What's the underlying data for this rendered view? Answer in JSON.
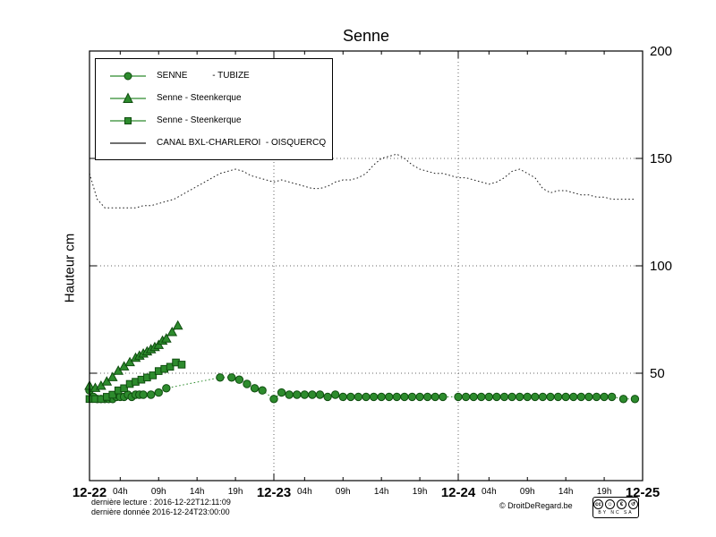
{
  "title": "Senne",
  "ylabel": "Hauteur cm",
  "legend": {
    "items": [
      {
        "label": "SENNE          - TUBIZE",
        "marker": "circle"
      },
      {
        "label": "Senne - Steenkerque",
        "marker": "triangle"
      },
      {
        "label": "Senne - Steenkerque",
        "marker": "square"
      },
      {
        "label": "CANAL BXL-CHARLEROI  - OISQUERCQ",
        "marker": "line"
      }
    ]
  },
  "footer": {
    "line1": "dernière lecture : 2016-12-22T12:11:09",
    "line2": "dernière donnée  2016-12-24T23:00:00",
    "copyright": "© DroitDeRegard.be",
    "license": {
      "cc": "cc",
      "by": "☺",
      "nc": "€",
      "sa": "↺",
      "labels": "BY NC SA"
    }
  },
  "colors": {
    "series_green": "#2d8b2d",
    "series_green_edge": "#0f4d0f",
    "canal_black": "#1a1a1a"
  },
  "chart_data": {
    "type": "line",
    "title": "Senne",
    "ylabel": "Hauteur cm",
    "xlim": [
      0,
      72
    ],
    "ylim": [
      0,
      200
    ],
    "yticks": [
      50,
      100,
      150,
      200
    ],
    "grid": {
      "h": [
        50,
        100,
        150
      ],
      "v": [
        24,
        48
      ]
    },
    "x_major": [
      {
        "pos": 0,
        "label": "12-22"
      },
      {
        "pos": 24,
        "label": "12-23"
      },
      {
        "pos": 48,
        "label": "12-24"
      },
      {
        "pos": 72,
        "label": "12-25"
      }
    ],
    "x_minor": [
      {
        "pos": 4,
        "label": "04h"
      },
      {
        "pos": 9,
        "label": "09h"
      },
      {
        "pos": 14,
        "label": "14h"
      },
      {
        "pos": 19,
        "label": "19h"
      },
      {
        "pos": 28,
        "label": "04h"
      },
      {
        "pos": 33,
        "label": "09h"
      },
      {
        "pos": 38,
        "label": "14h"
      },
      {
        "pos": 43,
        "label": "19h"
      },
      {
        "pos": 52,
        "label": "04h"
      },
      {
        "pos": 57,
        "label": "09h"
      },
      {
        "pos": 62,
        "label": "14h"
      },
      {
        "pos": 67,
        "label": "19h"
      }
    ],
    "series": [
      {
        "name": "SENNE - TUBIZE",
        "marker": "circle",
        "color": "#2d8b2d",
        "edge": "#0f4d0f",
        "line": "dotted",
        "x": [
          0,
          0.5,
          1,
          1.5,
          2,
          2.5,
          3,
          3.5,
          4,
          4.5,
          5,
          5.5,
          6,
          6.5,
          7,
          8,
          9,
          10,
          17,
          18.5,
          19.5,
          20.5,
          21.5,
          22.5,
          24,
          25,
          26,
          27,
          28,
          29,
          30,
          31,
          32,
          33,
          34,
          35,
          36,
          37,
          38,
          39,
          40,
          41,
          42,
          43,
          44,
          45,
          46,
          48,
          49,
          50,
          51,
          52,
          53,
          54,
          55,
          56,
          57,
          58,
          59,
          60,
          61,
          62,
          63,
          64,
          65,
          66,
          67,
          68,
          69.5,
          71
        ],
        "y": [
          42,
          39,
          38,
          38,
          38,
          38,
          38,
          39,
          39,
          39,
          40,
          39,
          40,
          40,
          40,
          40,
          41,
          43,
          48,
          48,
          47,
          45,
          43,
          42,
          38,
          41,
          40,
          40,
          40,
          40,
          40,
          39,
          40,
          39,
          39,
          39,
          39,
          39,
          39,
          39,
          39,
          39,
          39,
          39,
          39,
          39,
          39,
          39,
          39,
          39,
          39,
          39,
          39,
          39,
          39,
          39,
          39,
          39,
          39,
          39,
          39,
          39,
          39,
          39,
          39,
          39,
          39,
          39,
          38,
          38
        ]
      },
      {
        "name": "Senne - Steenkerque",
        "marker": "triangle",
        "color": "#2d8b2d",
        "edge": "#0f4d0f",
        "line": "dotted",
        "x": [
          0,
          0.75,
          1.5,
          2.25,
          3,
          3.75,
          4.5,
          5.25,
          6,
          6.5,
          7,
          7.5,
          8,
          8.5,
          9,
          9.5,
          10,
          10.75,
          11.5
        ],
        "y": [
          44,
          43,
          44,
          46,
          48,
          51,
          53,
          55,
          57,
          58,
          59,
          60,
          61,
          62,
          63,
          65,
          66,
          69,
          72
        ]
      },
      {
        "name": "Senne - Steenkerque",
        "marker": "square",
        "color": "#2d8b2d",
        "edge": "#0f4d0f",
        "line": "dotted",
        "x": [
          0,
          0.75,
          1.5,
          2.25,
          3,
          3.75,
          4.5,
          5.25,
          6,
          6.75,
          7.5,
          8.25,
          9,
          9.75,
          10.5,
          11.25,
          12
        ],
        "y": [
          38,
          38,
          38,
          39,
          40,
          42,
          43,
          45,
          46,
          47,
          48,
          49,
          51,
          52,
          53,
          55,
          54
        ]
      },
      {
        "name": "CANAL BXL-CHARLEROI - OISQUERCQ",
        "marker": "none",
        "color": "#1a1a1a",
        "edge": "#1a1a1a",
        "line": "dotted",
        "x": [
          0,
          1,
          2,
          3,
          4,
          5,
          6,
          7,
          8,
          9,
          10,
          11,
          12,
          13,
          14,
          15,
          16,
          17,
          18,
          19,
          20,
          21,
          22,
          23,
          24,
          25,
          26,
          27,
          28,
          29,
          30,
          31,
          32,
          33,
          34,
          35,
          36,
          37,
          38,
          39,
          40,
          41,
          42,
          43,
          44,
          45,
          46,
          47,
          48,
          49,
          50,
          51,
          52,
          53,
          54,
          55,
          56,
          57,
          58,
          59,
          60,
          61,
          62,
          63,
          64,
          65,
          66,
          67,
          68,
          69,
          70,
          71
        ],
        "y": [
          143,
          131,
          127,
          127,
          127,
          127,
          127,
          128,
          128,
          129,
          130,
          131,
          133,
          135,
          137,
          139,
          141,
          143,
          144,
          145,
          144,
          142,
          141,
          140,
          139,
          140,
          139,
          138,
          137,
          136,
          136,
          137,
          139,
          140,
          140,
          141,
          143,
          147,
          150,
          151,
          152,
          150,
          147,
          145,
          144,
          143,
          143,
          142,
          141,
          141,
          140,
          139,
          138,
          139,
          141,
          144,
          145,
          143,
          141,
          136,
          134,
          135,
          135,
          134,
          133,
          133,
          132,
          132,
          131,
          131,
          131,
          131
        ]
      }
    ]
  }
}
